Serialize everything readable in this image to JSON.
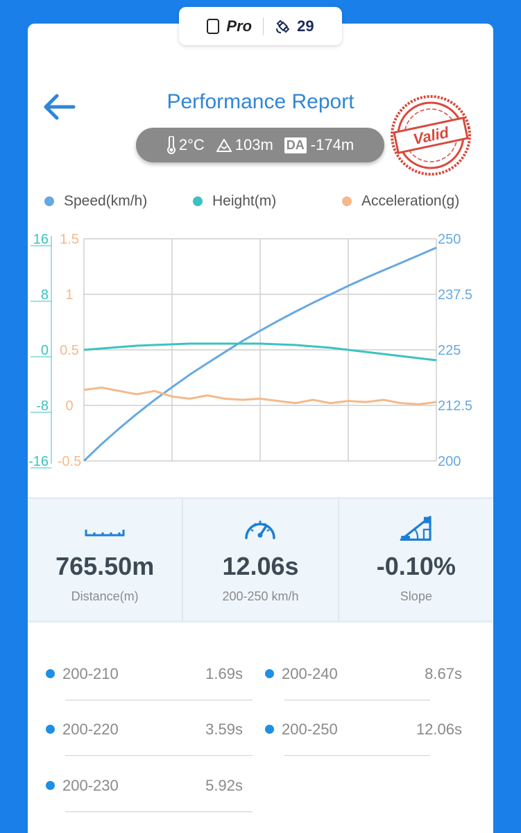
{
  "top_pill": {
    "mode_label": "Pro",
    "satellite_count": "29"
  },
  "header": {
    "title": "Performance Report",
    "stamp_text": "Valid"
  },
  "conditions": {
    "temperature": "2°C",
    "altitude": "103m",
    "density_altitude_label": "DA",
    "density_altitude": "-174m"
  },
  "legend": {
    "speed": "Speed(km/h)",
    "height": "Height(m)",
    "acceleration": "Acceleration(g)"
  },
  "colors": {
    "speed": "#67a9e0",
    "height": "#3cc2c0",
    "acceleration": "#f5b98a",
    "accent": "#2f86d6",
    "background": "#1a7fe8"
  },
  "chart_data": {
    "type": "line",
    "title": "",
    "x": [
      0,
      0.05,
      0.1,
      0.15,
      0.2,
      0.25,
      0.3,
      0.35,
      0.4,
      0.45,
      0.5,
      0.55,
      0.6,
      0.65,
      0.7,
      0.75,
      0.8,
      0.85,
      0.9,
      0.95,
      1.0
    ],
    "axes": {
      "height": {
        "ticks": [
          "16",
          "8",
          "0",
          "-8",
          "-16"
        ],
        "range": [
          -16,
          16
        ]
      },
      "acceleration": {
        "ticks": [
          "1.5",
          "1",
          "0.5",
          "0",
          "-0.5"
        ],
        "range": [
          -0.5,
          1.5
        ]
      },
      "speed": {
        "ticks": [
          "250",
          "237.5",
          "225",
          "212.5",
          "200"
        ],
        "range": [
          200,
          250
        ]
      }
    },
    "series": [
      {
        "name": "Speed(km/h)",
        "axis": "speed",
        "values": [
          200,
          203.8,
          207.3,
          210.6,
          213.7,
          216.6,
          219.4,
          222.0,
          224.5,
          227.0,
          229.3,
          231.5,
          233.6,
          235.6,
          237.5,
          239.4,
          241.2,
          242.9,
          244.6,
          246.3,
          248.0
        ]
      },
      {
        "name": "Height(m)",
        "axis": "height",
        "values": [
          0.0,
          0.2,
          0.4,
          0.6,
          0.7,
          0.8,
          0.9,
          0.9,
          0.9,
          0.9,
          0.9,
          0.8,
          0.7,
          0.5,
          0.3,
          0.0,
          -0.3,
          -0.6,
          -0.9,
          -1.2,
          -1.5
        ]
      },
      {
        "name": "Acceleration(g)",
        "axis": "acceleration",
        "values": [
          0.14,
          0.16,
          0.13,
          0.1,
          0.13,
          0.08,
          0.06,
          0.09,
          0.06,
          0.05,
          0.06,
          0.04,
          0.02,
          0.05,
          0.02,
          0.04,
          0.03,
          0.05,
          0.02,
          0.01,
          0.03
        ]
      }
    ]
  },
  "stats": [
    {
      "value": "765.50m",
      "label": "Distance(m)",
      "icon": "ruler-icon"
    },
    {
      "value": "12.06s",
      "label": "200-250 km/h",
      "icon": "speedometer-icon"
    },
    {
      "value": "-0.10%",
      "label": "Slope",
      "icon": "slope-icon"
    }
  ],
  "splits": [
    {
      "range": "200-210",
      "time": "1.69s"
    },
    {
      "range": "200-240",
      "time": "8.67s"
    },
    {
      "range": "200-220",
      "time": "3.59s"
    },
    {
      "range": "200-250",
      "time": "12.06s"
    },
    {
      "range": "200-230",
      "time": "5.92s"
    }
  ]
}
